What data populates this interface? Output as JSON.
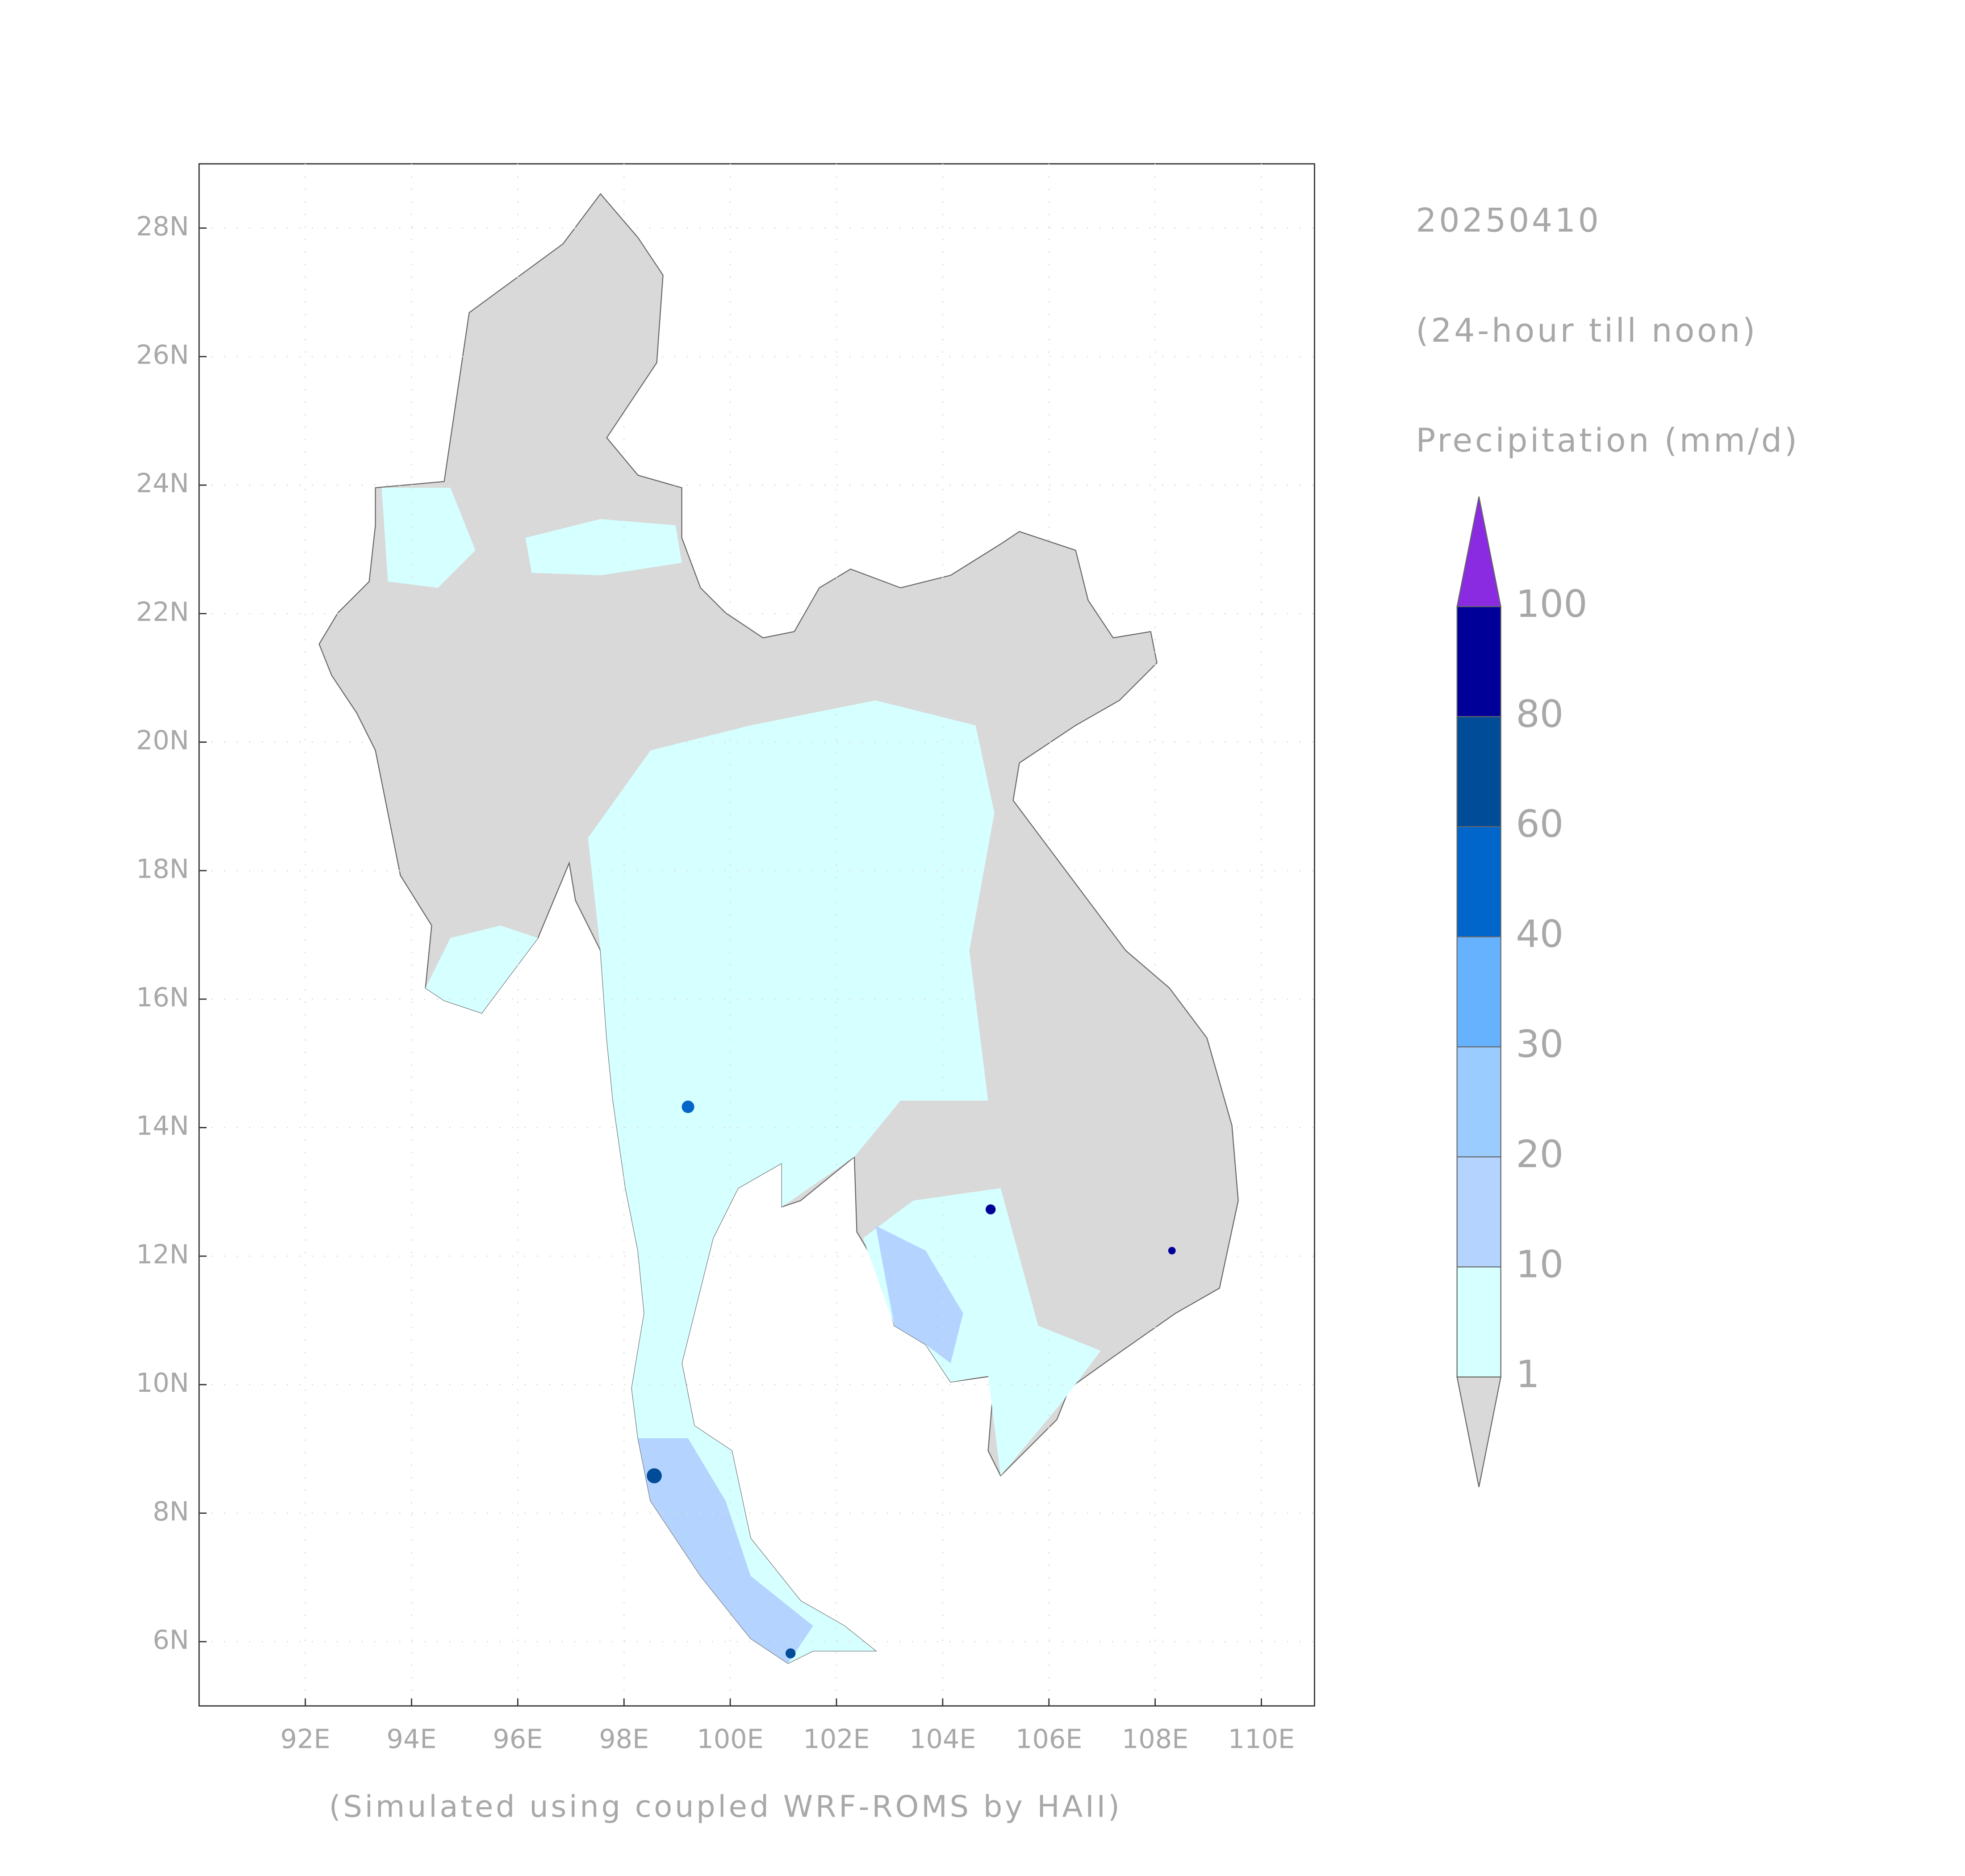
{
  "chart_data": {
    "type": "map",
    "date": "20250410",
    "period": "(24-hour till noon)",
    "variable": "Precipitation (mm/d)",
    "footer": "(Simulated using coupled WRF-ROMS by HAII)",
    "xlim": [
      90,
      111
    ],
    "ylim": [
      5,
      29
    ],
    "xticks": [
      {
        "value": 92,
        "label": "92E"
      },
      {
        "value": 94,
        "label": "94E"
      },
      {
        "value": 96,
        "label": "96E"
      },
      {
        "value": 98,
        "label": "98E"
      },
      {
        "value": 100,
        "label": "100E"
      },
      {
        "value": 102,
        "label": "102E"
      },
      {
        "value": 104,
        "label": "104E"
      },
      {
        "value": 106,
        "label": "106E"
      },
      {
        "value": 108,
        "label": "108E"
      },
      {
        "value": 110,
        "label": "110E"
      }
    ],
    "yticks": [
      {
        "value": 6,
        "label": "6N"
      },
      {
        "value": 8,
        "label": "8N"
      },
      {
        "value": 10,
        "label": "10N"
      },
      {
        "value": 12,
        "label": "12N"
      },
      {
        "value": 14,
        "label": "14N"
      },
      {
        "value": 16,
        "label": "16N"
      },
      {
        "value": 18,
        "label": "18N"
      },
      {
        "value": 20,
        "label": "20N"
      },
      {
        "value": 22,
        "label": "22N"
      },
      {
        "value": 24,
        "label": "24N"
      },
      {
        "value": 26,
        "label": "26N"
      },
      {
        "value": 28,
        "label": "28N"
      }
    ],
    "grid": true,
    "colorbar": {
      "levels": [
        1,
        10,
        20,
        30,
        40,
        60,
        80,
        100
      ],
      "colors": [
        "#d9d9d9",
        "#d6ffff",
        "#b4d3ff",
        "#9accff",
        "#66b2ff",
        "#0066cc",
        "#004c99",
        "#000099",
        "#8a2be2"
      ]
    }
  }
}
